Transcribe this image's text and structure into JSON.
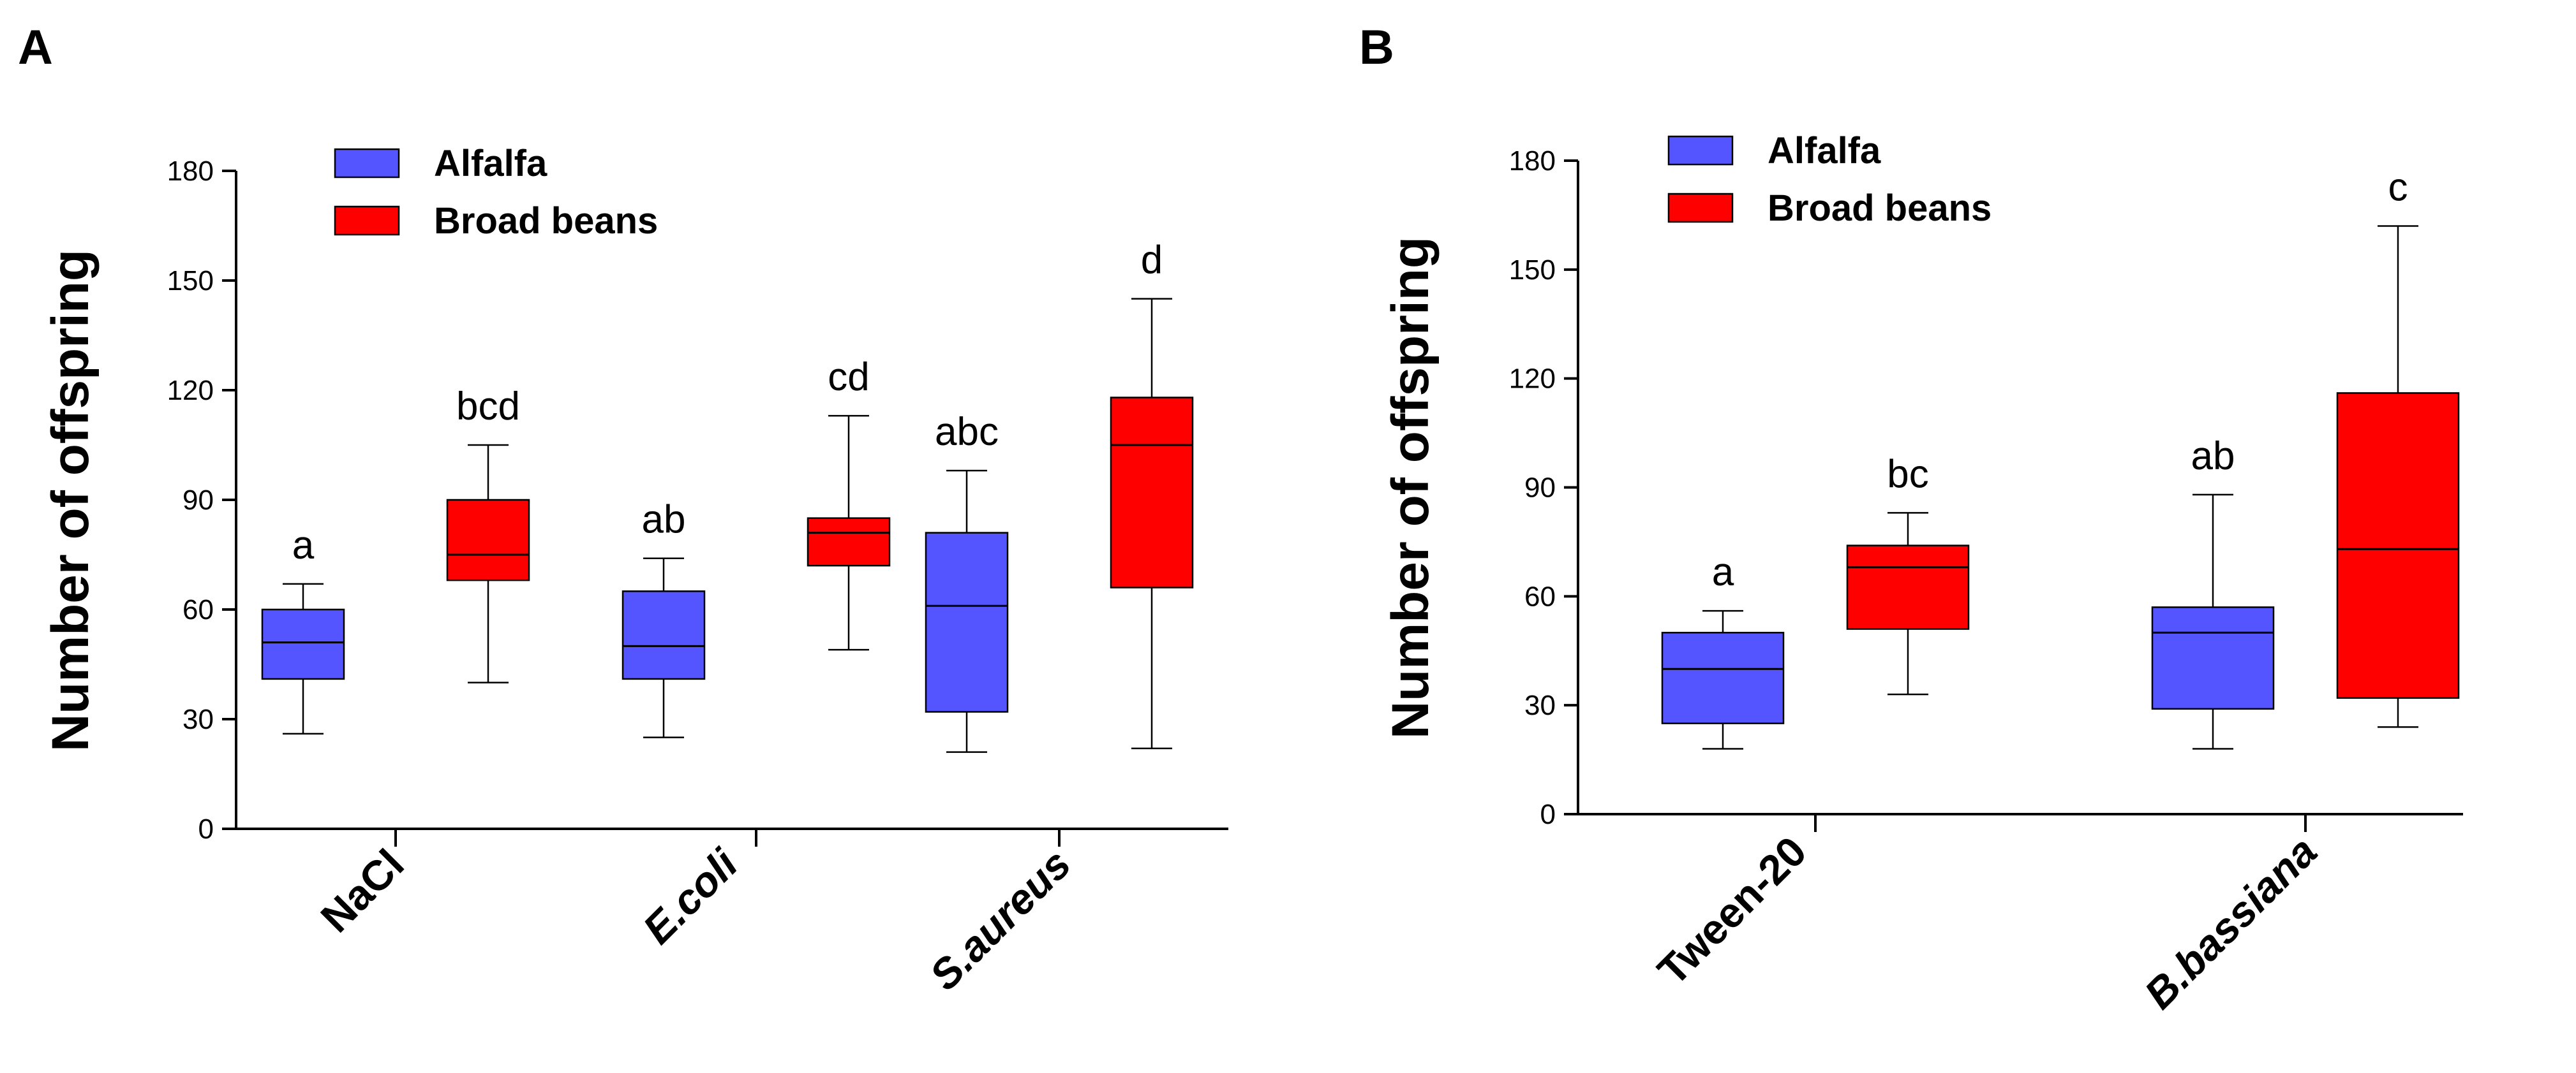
{
  "chart_data": [
    {
      "type": "box",
      "panel_label": "A",
      "ylabel": "Number of offspring",
      "ylim": [
        0,
        180
      ],
      "yticks": [
        0,
        30,
        60,
        90,
        120,
        150,
        180
      ],
      "categories": [
        "NaCl",
        "E.coli",
        "S.aureus"
      ],
      "italic_categories": [
        false,
        true,
        true
      ],
      "legend_position": "top-left",
      "series": [
        {
          "name": "Alfalfa",
          "color": "#5555ff",
          "boxes": [
            {
              "min": 26,
              "q1": 41,
              "median": 51,
              "q3": 60,
              "max": 67,
              "label": "a"
            },
            {
              "min": 25,
              "q1": 41,
              "median": 50,
              "q3": 65,
              "max": 74,
              "label": "ab"
            },
            {
              "min": 21,
              "q1": 32,
              "median": 61,
              "q3": 81,
              "max": 98,
              "label": "abc"
            }
          ]
        },
        {
          "name": "Broad beans",
          "color": "#ff0000",
          "boxes": [
            {
              "min": 40,
              "q1": 68,
              "median": 75,
              "q3": 90,
              "max": 105,
              "label": "bcd"
            },
            {
              "min": 49,
              "q1": 72,
              "median": 81,
              "q3": 85,
              "max": 113,
              "label": "cd"
            },
            {
              "min": 22,
              "q1": 66,
              "median": 105,
              "q3": 118,
              "max": 145,
              "label": "d"
            }
          ]
        }
      ]
    },
    {
      "type": "box",
      "panel_label": "B",
      "ylabel": "Number of offspring",
      "ylim": [
        0,
        180
      ],
      "yticks": [
        0,
        30,
        60,
        90,
        120,
        150,
        180
      ],
      "categories": [
        "Tween-20",
        "B.bassiana"
      ],
      "italic_categories": [
        false,
        true
      ],
      "legend_position": "top-left",
      "series": [
        {
          "name": "Alfalfa",
          "color": "#5555ff",
          "boxes": [
            {
              "min": 18,
              "q1": 25,
              "median": 40,
              "q3": 50,
              "max": 56,
              "label": "a"
            },
            {
              "min": 18,
              "q1": 29,
              "median": 50,
              "q3": 57,
              "max": 88,
              "label": "ab"
            }
          ]
        },
        {
          "name": "Broad beans",
          "color": "#ff0000",
          "boxes": [
            {
              "min": 33,
              "q1": 51,
              "median": 68,
              "q3": 74,
              "max": 83,
              "label": "bc"
            },
            {
              "min": 24,
              "q1": 32,
              "median": 73,
              "q3": 116,
              "max": 162,
              "label": "c"
            }
          ]
        }
      ]
    }
  ]
}
